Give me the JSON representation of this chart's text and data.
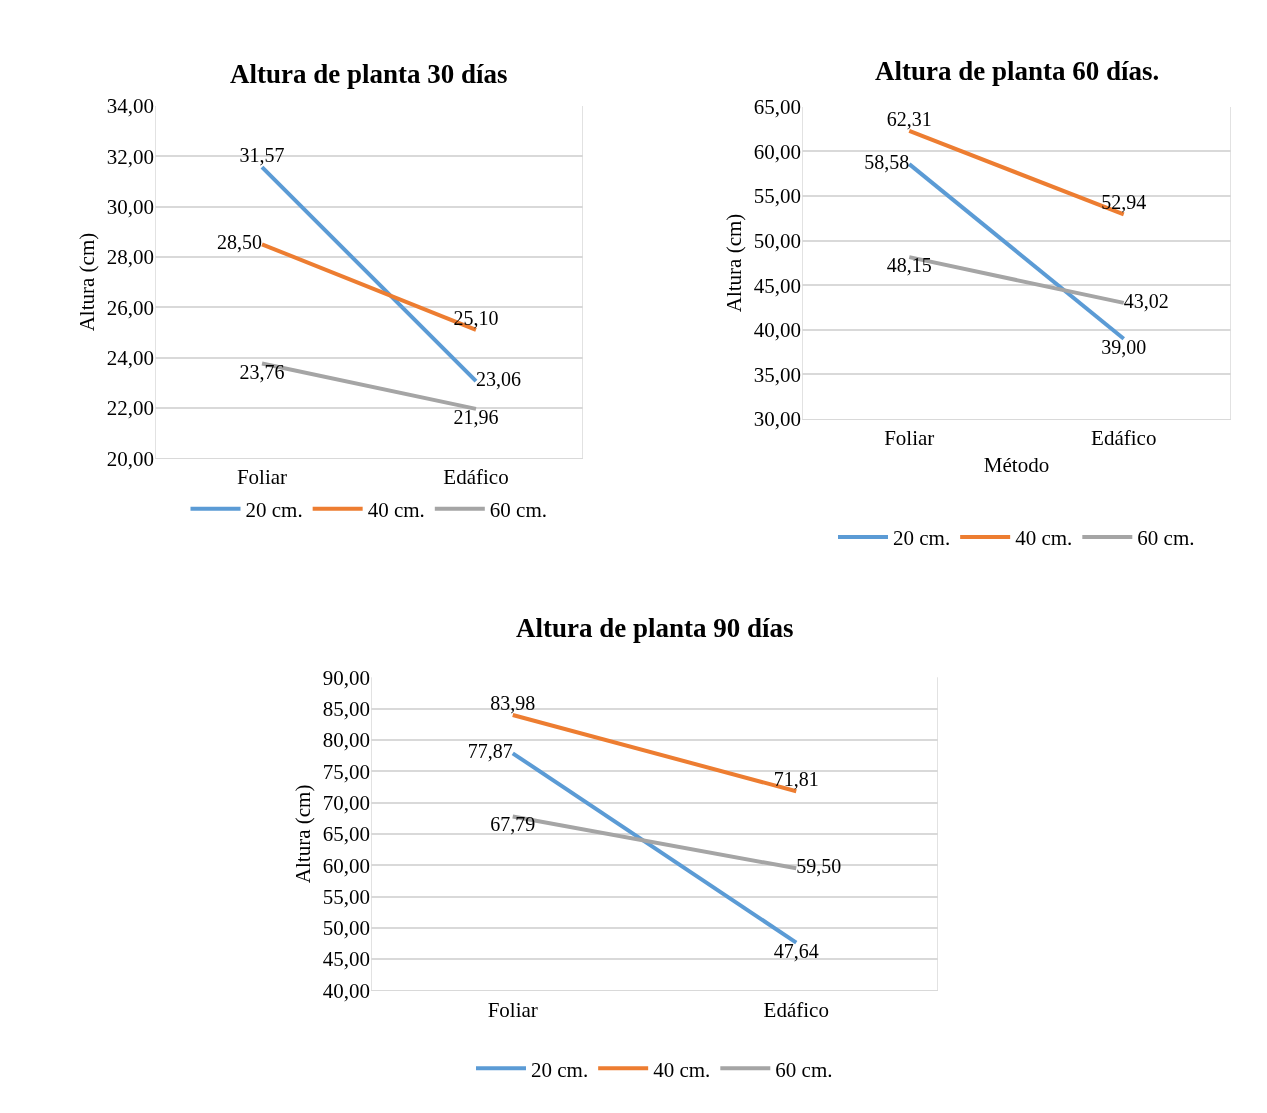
{
  "chart_data": [
    {
      "type": "line",
      "title": "Altura de planta 30 días",
      "ylabel": "Altura (cm)",
      "categories": [
        "Foliar",
        "Edáfico"
      ],
      "series": [
        {
          "name": "20 cm.",
          "color": "#5b9bd5",
          "values": [
            31.57,
            23.06
          ],
          "value_labels": [
            "31,57",
            "23,06"
          ]
        },
        {
          "name": "40 cm.",
          "color": "#ed7d31",
          "values": [
            28.5,
            25.1
          ],
          "value_labels": [
            "28,50",
            "25,10"
          ]
        },
        {
          "name": "60 cm.",
          "color": "#a5a5a5",
          "values": [
            23.76,
            21.96
          ],
          "value_labels": [
            "23,76",
            "21,96"
          ]
        }
      ],
      "ylim": [
        20,
        34
      ],
      "yticks": [
        {
          "value": 20,
          "label": "20,00"
        },
        {
          "value": 22,
          "label": "22,00"
        },
        {
          "value": 24,
          "label": "24,00"
        },
        {
          "value": 26,
          "label": "26,00"
        },
        {
          "value": 28,
          "label": "28,00"
        },
        {
          "value": 30,
          "label": "30,00"
        },
        {
          "value": 32,
          "label": "32,00"
        },
        {
          "value": 34,
          "label": "34,00"
        }
      ],
      "grid": true,
      "legend": "bottom",
      "marker": "none"
    },
    {
      "type": "line",
      "title": "Altura de planta 60 días.",
      "ylabel": "Altura (cm)",
      "xlabel": "Método",
      "categories": [
        "Foliar",
        "Edáfico"
      ],
      "series": [
        {
          "name": "20 cm.",
          "color": "#5b9bd5",
          "values": [
            58.58,
            39.0
          ],
          "value_labels": [
            "58,58",
            "39,00"
          ]
        },
        {
          "name": "40 cm.",
          "color": "#ed7d31",
          "values": [
            62.31,
            52.94
          ],
          "value_labels": [
            "62,31",
            "52,94"
          ]
        },
        {
          "name": "60 cm.",
          "color": "#a5a5a5",
          "values": [
            48.15,
            43.02
          ],
          "value_labels": [
            "48,15",
            "43,02"
          ]
        }
      ],
      "ylim": [
        30,
        65
      ],
      "yticks": [
        {
          "value": 30,
          "label": "30,00"
        },
        {
          "value": 35,
          "label": "35,00"
        },
        {
          "value": 40,
          "label": "40,00"
        },
        {
          "value": 45,
          "label": "45,00"
        },
        {
          "value": 50,
          "label": "50,00"
        },
        {
          "value": 55,
          "label": "55,00"
        },
        {
          "value": 60,
          "label": "60,00"
        },
        {
          "value": 65,
          "label": "65,00"
        }
      ],
      "grid": true,
      "legend": "bottom",
      "marker": "none"
    },
    {
      "type": "line",
      "title": "Altura de planta 90 días",
      "ylabel": "Altura (cm)",
      "categories": [
        "Foliar",
        "Edáfico"
      ],
      "series": [
        {
          "name": "20 cm.",
          "color": "#5b9bd5",
          "values": [
            77.87,
            47.64
          ],
          "value_labels": [
            "77,87",
            "47,64"
          ]
        },
        {
          "name": "40 cm.",
          "color": "#ed7d31",
          "values": [
            83.98,
            71.81
          ],
          "value_labels": [
            "83,98",
            "71,81"
          ]
        },
        {
          "name": "60 cm.",
          "color": "#a5a5a5",
          "values": [
            67.79,
            59.5
          ],
          "value_labels": [
            "67,79",
            "59,50"
          ]
        }
      ],
      "ylim": [
        40,
        90
      ],
      "yticks": [
        {
          "value": 40,
          "label": "40,00"
        },
        {
          "value": 45,
          "label": "45,00"
        },
        {
          "value": 50,
          "label": "50,00"
        },
        {
          "value": 55,
          "label": "55,00"
        },
        {
          "value": 60,
          "label": "60,00"
        },
        {
          "value": 65,
          "label": "65,00"
        },
        {
          "value": 70,
          "label": "70,00"
        },
        {
          "value": 75,
          "label": "75,00"
        },
        {
          "value": 80,
          "label": "80,00"
        },
        {
          "value": 85,
          "label": "85,00"
        },
        {
          "value": 90,
          "label": "90,00"
        }
      ],
      "grid": true,
      "legend": "bottom",
      "marker": "none"
    }
  ]
}
